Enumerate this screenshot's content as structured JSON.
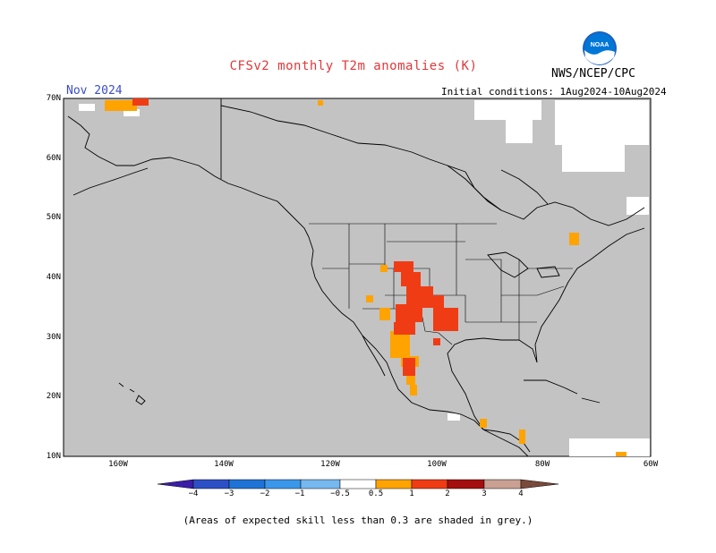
{
  "title": "CFSv2 monthly T2m anomalies (K)",
  "month": "Nov 2024",
  "agency": "NWS/NCEP/CPC",
  "initial_conditions": "Initial conditions: 1Aug2024-10Aug2024",
  "logo_text": "NOAA",
  "lat_labels": [
    "70N",
    "60N",
    "50N",
    "40N",
    "30N",
    "20N",
    "10N"
  ],
  "lon_labels": [
    "160W",
    "140W",
    "120W",
    "100W",
    "80W",
    "60W"
  ],
  "colorbar": {
    "labels": [
      "−4",
      "−3",
      "−2",
      "−1",
      "−0.5",
      "0.5",
      "1",
      "2",
      "3",
      "4"
    ],
    "colors": [
      "#3a1ea8",
      "#2d4fc6",
      "#1f73d6",
      "#3b97ea",
      "#76b8f0",
      "#ffffff",
      "#ffa300",
      "#f03c14",
      "#a50e0e",
      "#c9a092",
      "#7a4a3a"
    ]
  },
  "map_colors": {
    "background": "#c3c3c3",
    "land_border": "#000000",
    "positive_weak": "#ffa300",
    "positive_mid": "#f03c14"
  },
  "footnote": "(Areas of expected skill less than 0.3 are shaded in grey.)"
}
